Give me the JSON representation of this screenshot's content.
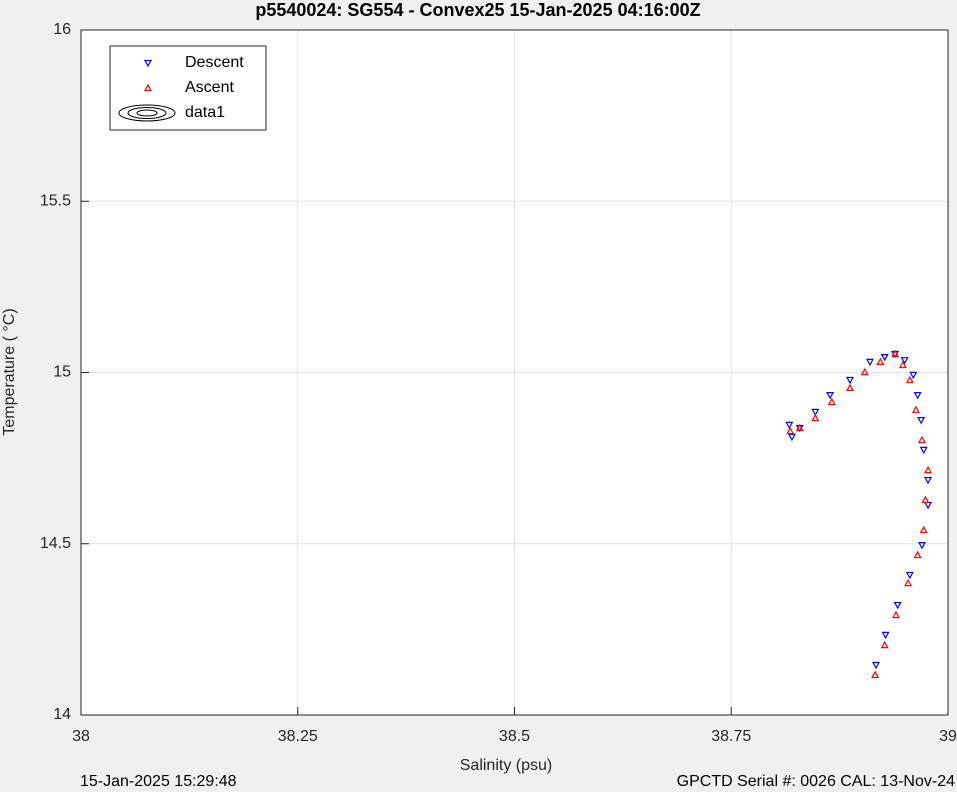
{
  "chart_data": {
    "type": "scatter",
    "title": "p5540024: SG554 - Convex25 15-Jan-2025 04:16:00Z",
    "x_label": "Salinity (psu)",
    "y_label": "Temperature (   °C)",
    "footer_left": "15-Jan-2025 15:29:48",
    "footer_right": "GPCTD Serial #: 0026 CAL: 13-Nov-24",
    "xlim": [
      38,
      39
    ],
    "xticks": [
      38,
      38.25,
      38.5,
      38.75,
      39
    ],
    "ylim": [
      14,
      16
    ],
    "yticks": [
      14,
      14.5,
      15,
      15.5,
      16
    ],
    "grid": true,
    "legend_position": "upper-left",
    "series": [
      {
        "name": "Descent",
        "color": "#0000ff",
        "marker": "triangle-down",
        "x": [
          38.817,
          38.82,
          38.829,
          38.847,
          38.864,
          38.887,
          38.91,
          38.927,
          38.939,
          38.95,
          38.96,
          38.965,
          38.969,
          38.972,
          38.977,
          38.977,
          38.97,
          38.956,
          38.942,
          38.928,
          38.917
        ],
        "values": [
          14.847,
          14.812,
          14.838,
          14.885,
          14.934,
          14.978,
          15.031,
          15.045,
          15.054,
          15.036,
          14.993,
          14.934,
          14.861,
          14.774,
          14.686,
          14.613,
          14.496,
          14.409,
          14.321,
          14.234,
          14.146
        ]
      },
      {
        "name": "Ascent",
        "color": "#ff0000",
        "marker": "triangle-up",
        "x": [
          38.916,
          38.927,
          38.94,
          38.954,
          38.965,
          38.972,
          38.974,
          38.977,
          38.97,
          38.963,
          38.956,
          38.948,
          38.939,
          38.922,
          38.904,
          38.887,
          38.866,
          38.847,
          38.829,
          38.818
        ],
        "values": [
          14.117,
          14.204,
          14.292,
          14.385,
          14.467,
          14.54,
          14.628,
          14.715,
          14.803,
          14.891,
          14.978,
          15.022,
          15.054,
          15.031,
          15.001,
          14.955,
          14.914,
          14.867,
          14.838,
          14.829
        ]
      }
    ],
    "contour": {
      "name": "data1",
      "color": "#000000"
    }
  }
}
